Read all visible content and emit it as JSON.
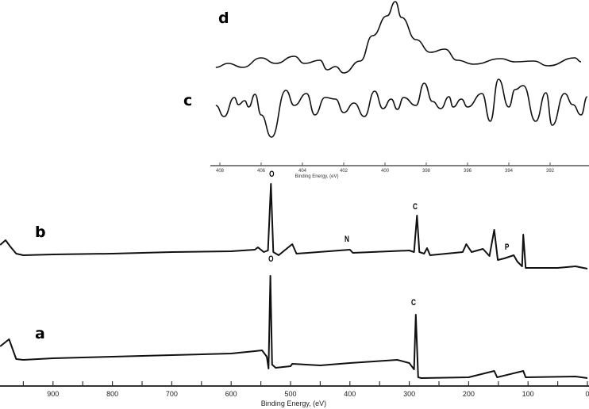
{
  "chart_data": [
    {
      "type": "line",
      "title": "",
      "xlabel": "Binding Energy, (eV)",
      "ylabel": "",
      "xlim": [
        990,
        0
      ],
      "x_reversed": true,
      "x_ticks": [
        "900",
        "800",
        "700",
        "600",
        "500",
        "400",
        "300",
        "200",
        "100",
        "0"
      ],
      "grid": false,
      "series": [
        {
          "name": "b",
          "points": [
            [
              989,
              171
            ],
            [
              980,
              177
            ],
            [
              972,
              169
            ],
            [
              962,
              160
            ],
            [
              950,
              158
            ],
            [
              900,
              159
            ],
            [
              800,
              160
            ],
            [
              700,
              162
            ],
            [
              600,
              163
            ],
            [
              560,
              165
            ],
            [
              555,
              168
            ],
            [
              545,
              162
            ],
            [
              538,
              164
            ],
            [
              533,
              248
            ],
            [
              529,
              162
            ],
            [
              520,
              158
            ],
            [
              497,
              172
            ],
            [
              490,
              160
            ],
            [
              400,
              165
            ],
            [
              395,
              161
            ],
            [
              300,
              164
            ],
            [
              292,
              162
            ],
            [
              287,
              208
            ],
            [
              283,
              162
            ],
            [
              275,
              160
            ],
            [
              270,
              167
            ],
            [
              265,
              158
            ],
            [
              210,
              162
            ],
            [
              204,
              172
            ],
            [
              195,
              162
            ],
            [
              176,
              166
            ],
            [
              165,
              157
            ],
            [
              157,
              190
            ],
            [
              151,
              152
            ],
            [
              140,
              154
            ],
            [
              124,
              158
            ],
            [
              118,
              150
            ],
            [
              110,
              144
            ],
            [
              108,
              184
            ],
            [
              104,
              142
            ],
            [
              50,
              142
            ],
            [
              20,
              144
            ],
            [
              0,
              141
            ]
          ]
        },
        {
          "name": "a",
          "points": [
            [
              989,
              43
            ],
            [
              974,
              52
            ],
            [
              962,
              27
            ],
            [
              950,
              26
            ],
            [
              900,
              28
            ],
            [
              800,
              30
            ],
            [
              700,
              32
            ],
            [
              600,
              34
            ],
            [
              560,
              37
            ],
            [
              548,
              38
            ],
            [
              540,
              30
            ],
            [
              537,
              15
            ],
            [
              534,
              132
            ],
            [
              531,
              20
            ],
            [
              525,
              16
            ],
            [
              500,
              18
            ],
            [
              497,
              21
            ],
            [
              450,
              19
            ],
            [
              400,
              22
            ],
            [
              320,
              26
            ],
            [
              300,
              22
            ],
            [
              292,
              14
            ],
            [
              289,
              83
            ],
            [
              285,
              4
            ],
            [
              280,
              3
            ],
            [
              200,
              4
            ],
            [
              157,
              12
            ],
            [
              152,
              4
            ],
            [
              108,
              12
            ],
            [
              104,
              4
            ],
            [
              20,
              5
            ],
            [
              0,
              3
            ]
          ]
        }
      ],
      "annotations": {
        "b": [
          "O",
          "C",
          "N",
          "P"
        ],
        "a": [
          "O",
          "C"
        ]
      }
    },
    {
      "type": "line",
      "title": "",
      "xlabel": "Binding Energy, (eV)",
      "ylabel": "",
      "xlim": [
        408.3,
        390.1
      ],
      "x_reversed": true,
      "x_ticks": [
        "408",
        "406",
        "404",
        "402",
        "400",
        "398",
        "396",
        "394",
        "392"
      ],
      "grid": false,
      "series": [
        {
          "name": "d",
          "points": [
            [
              408.2,
              125
            ],
            [
              407.6,
              130
            ],
            [
              406.9,
              125
            ],
            [
              406.0,
              137
            ],
            [
              405.3,
              130
            ],
            [
              404.4,
              139
            ],
            [
              403.9,
              130
            ],
            [
              403.15,
              134
            ],
            [
              402.8,
              122
            ],
            [
              402.4,
              126
            ],
            [
              402.0,
              118
            ],
            [
              401.2,
              133
            ],
            [
              400.6,
              165
            ],
            [
              399.9,
              190
            ],
            [
              399.5,
              208
            ],
            [
              399.2,
              188
            ],
            [
              398.5,
              160
            ],
            [
              397.8,
              144
            ],
            [
              397.1,
              148
            ],
            [
              396.5,
              134
            ],
            [
              395.7,
              129
            ],
            [
              394.4,
              136
            ],
            [
              393.7,
              132
            ],
            [
              392.8,
              133
            ],
            [
              392.1,
              127
            ],
            [
              390.8,
              137
            ],
            [
              390.5,
              132
            ]
          ]
        },
        {
          "name": "c",
          "points": [
            [
              408.2,
              77
            ],
            [
              407.8,
              63
            ],
            [
              407.3,
              87
            ],
            [
              407.1,
              78
            ],
            [
              406.8,
              83
            ],
            [
              406.6,
              75
            ],
            [
              406.3,
              91
            ],
            [
              406.0,
              65
            ],
            [
              405.5,
              37
            ],
            [
              404.8,
              96
            ],
            [
              404.4,
              77
            ],
            [
              403.8,
              92
            ],
            [
              403.4,
              65
            ],
            [
              402.9,
              87
            ],
            [
              402.4,
              85
            ],
            [
              402.0,
              68
            ],
            [
              401.5,
              80
            ],
            [
              401.0,
              63
            ],
            [
              400.5,
              95
            ],
            [
              400.1,
              73
            ],
            [
              399.7,
              85
            ],
            [
              399.4,
              72
            ],
            [
              399.1,
              87
            ],
            [
              398.5,
              77
            ],
            [
              398.1,
              105
            ],
            [
              397.7,
              82
            ],
            [
              397.3,
              73
            ],
            [
              396.9,
              88
            ],
            [
              396.7,
              75
            ],
            [
              396.3,
              85
            ],
            [
              396.0,
              75
            ],
            [
              395.3,
              92
            ],
            [
              394.9,
              57
            ],
            [
              394.5,
              110
            ],
            [
              394.0,
              75
            ],
            [
              393.7,
              97
            ],
            [
              393.3,
              102
            ],
            [
              392.7,
              57
            ],
            [
              392.2,
              93
            ],
            [
              391.9,
              52
            ],
            [
              391.3,
              92
            ],
            [
              390.9,
              78
            ],
            [
              390.5,
              65
            ],
            [
              390.2,
              88
            ]
          ]
        }
      ]
    }
  ],
  "labels": {
    "a": "a",
    "b": "b",
    "c": "c",
    "d": "d",
    "O": "O",
    "C": "C",
    "N": "N",
    "P": "P"
  }
}
